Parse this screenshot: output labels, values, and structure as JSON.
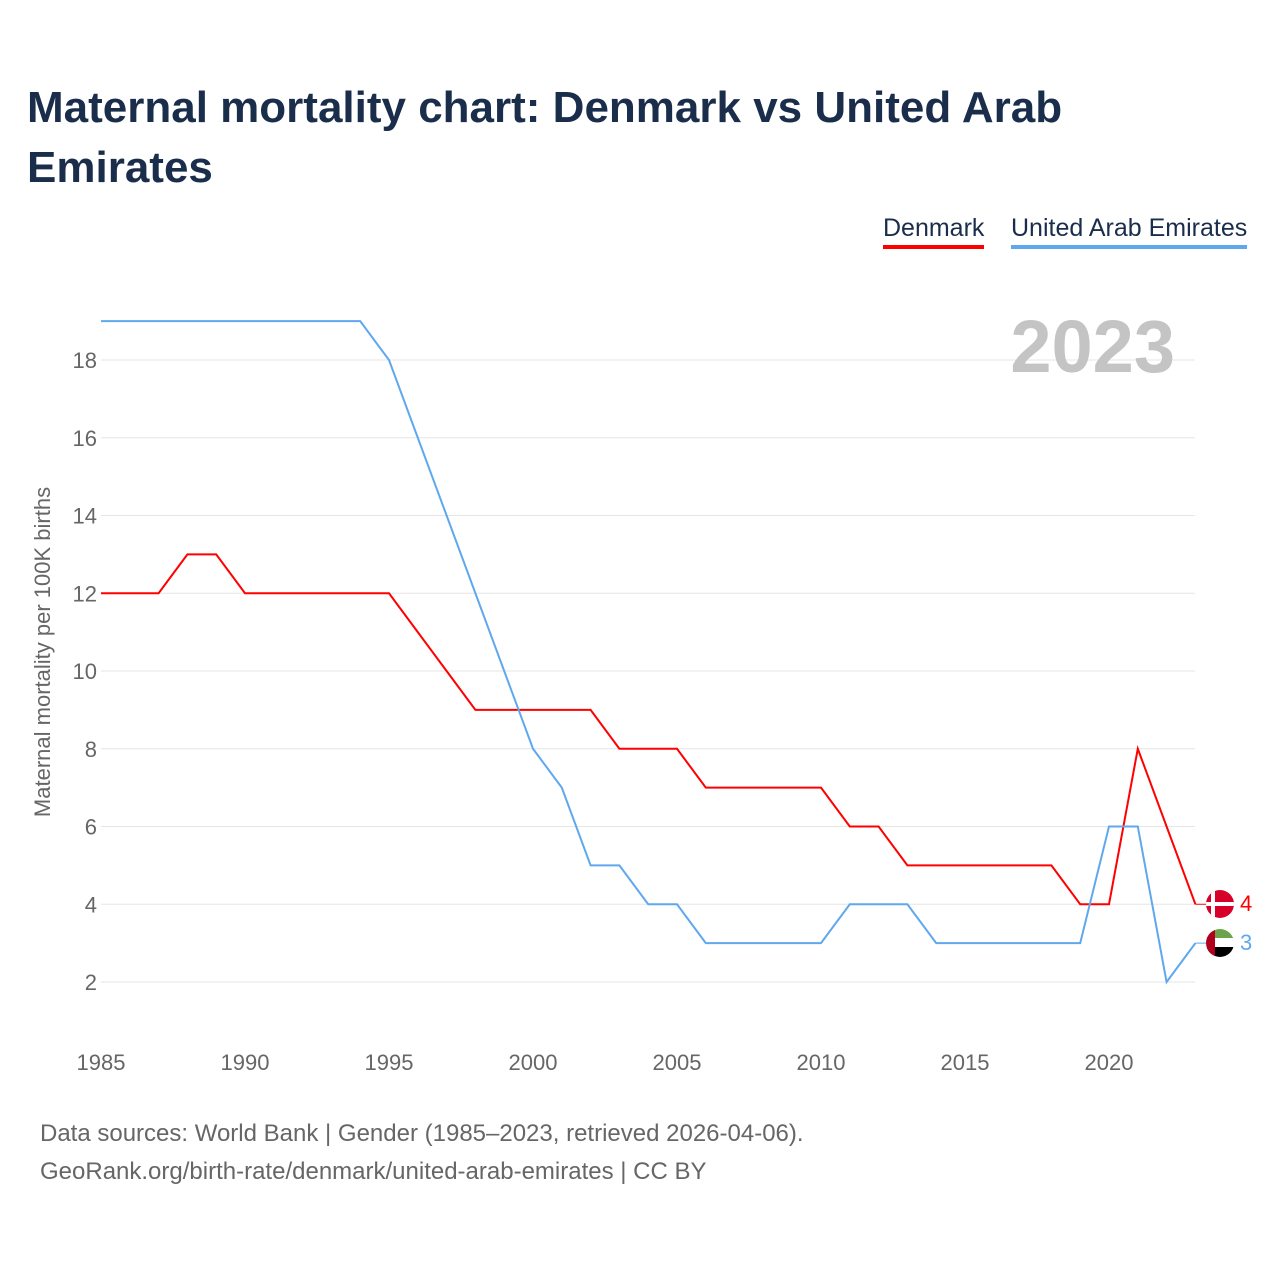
{
  "title": "Maternal mortality chart: Denmark vs United Arab Emirates",
  "footer": {
    "line1": "Data sources: World Bank | Gender (1985–2023, retrieved 2026-04-06).",
    "line2": "GeoRank.org/birth-rate/denmark/united-arab-emirates | CC BY"
  },
  "chart_data": {
    "type": "line",
    "title": "Maternal mortality chart: Denmark vs United Arab Emirates",
    "ylabel": "Maternal mortality per 100K births",
    "xlabel": "",
    "year_label": "2023",
    "x": [
      1985,
      1986,
      1987,
      1988,
      1989,
      1990,
      1991,
      1992,
      1993,
      1994,
      1995,
      1996,
      1997,
      1998,
      1999,
      2000,
      2001,
      2002,
      2003,
      2004,
      2005,
      2006,
      2007,
      2008,
      2009,
      2010,
      2011,
      2012,
      2013,
      2014,
      2015,
      2016,
      2017,
      2018,
      2019,
      2020,
      2021,
      2022,
      2023
    ],
    "xticks": [
      1985,
      1990,
      1995,
      2000,
      2005,
      2010,
      2015,
      2020
    ],
    "yticks": [
      2,
      4,
      6,
      8,
      10,
      12,
      14,
      16,
      18
    ],
    "xlim": [
      1985,
      2023
    ],
    "ylim": [
      1,
      19.5
    ],
    "legend": "top-right",
    "series": [
      {
        "name": "Denmark",
        "color": "#ff0000",
        "end_label": "4",
        "values": [
          12,
          12,
          12,
          13,
          13,
          12,
          12,
          12,
          12,
          12,
          12,
          11,
          10,
          9,
          9,
          9,
          9,
          9,
          8,
          8,
          8,
          7,
          7,
          7,
          7,
          7,
          6,
          6,
          5,
          5,
          5,
          5,
          5,
          5,
          4,
          4,
          8,
          6,
          4
        ]
      },
      {
        "name": "United Arab Emirates",
        "color": "#5fa8ee",
        "end_label": "3",
        "values": [
          19,
          19,
          19,
          19,
          19,
          19,
          19,
          19,
          19,
          19,
          18,
          16,
          14,
          12,
          10,
          8,
          7,
          5,
          5,
          4,
          4,
          3,
          3,
          3,
          3,
          3,
          4,
          4,
          4,
          3,
          3,
          3,
          3,
          3,
          3,
          6,
          6,
          2,
          3
        ]
      }
    ]
  }
}
